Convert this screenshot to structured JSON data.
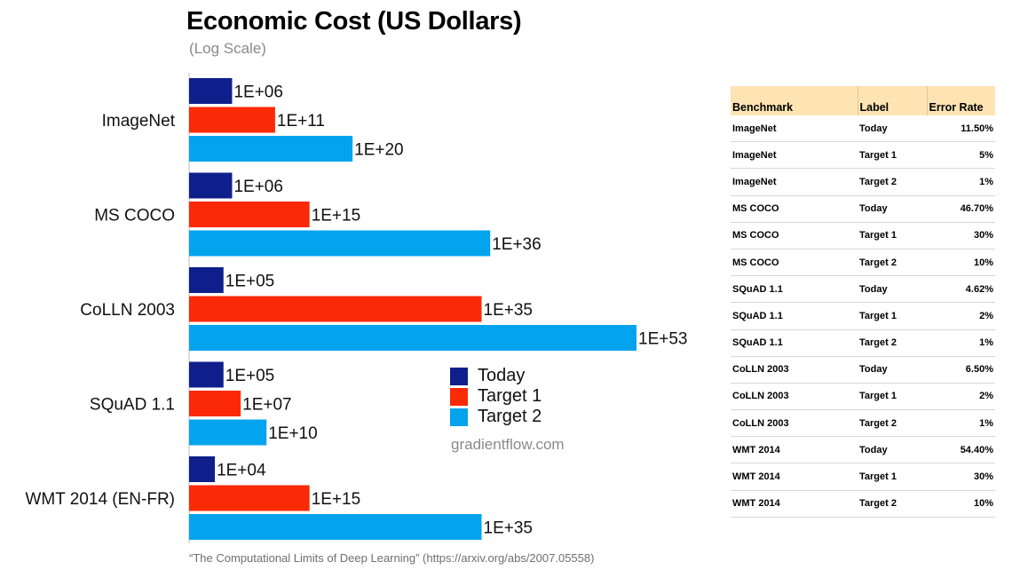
{
  "chart_data": {
    "type": "bar",
    "orientation": "horizontal",
    "title": "Economic Cost (US Dollars)",
    "subtitle": "(Log Scale)",
    "log_scale": true,
    "categories": [
      "ImageNet",
      "MS COCO",
      "CoLLN 2003",
      "SQuAD 1.1",
      "WMT 2014 (EN-FR)"
    ],
    "series": [
      {
        "name": "Today",
        "color": "#0e1f8c",
        "exponents": [
          6,
          6,
          5,
          5,
          4
        ],
        "labels": [
          "1E+06",
          "1E+06",
          "1E+05",
          "1E+05",
          "1E+04"
        ]
      },
      {
        "name": "Target 1",
        "color": "#fa2a07",
        "exponents": [
          11,
          15,
          35,
          7,
          15
        ],
        "labels": [
          "1E+11",
          "1E+15",
          "1E+35",
          "1E+07",
          "1E+15"
        ]
      },
      {
        "name": "Target 2",
        "color": "#04a3ee",
        "exponents": [
          20,
          36,
          53,
          10,
          35
        ],
        "labels": [
          "1E+20",
          "1E+36",
          "1E+53",
          "1E+10",
          "1E+35"
        ]
      }
    ],
    "xlim_exponent": [
      1,
      53
    ],
    "legend_position": "center-right",
    "grid": false
  },
  "watermark": "gradientflow.com",
  "source": "“The Computational Limits of Deep Learning” (https://arxiv.org/abs/2007.05558)",
  "table": {
    "headers": [
      "Benchmark",
      "Label",
      "Error Rate"
    ],
    "rows": [
      [
        "ImageNet",
        "Today",
        "11.50%"
      ],
      [
        "ImageNet",
        "Target 1",
        "5%"
      ],
      [
        "ImageNet",
        "Target 2",
        "1%"
      ],
      [
        "MS COCO",
        "Today",
        "46.70%"
      ],
      [
        "MS COCO",
        "Target 1",
        "30%"
      ],
      [
        "MS COCO",
        "Target 2",
        "10%"
      ],
      [
        "SQuAD 1.1",
        "Today",
        "4.62%"
      ],
      [
        "SQuAD 1.1",
        "Target 1",
        "2%"
      ],
      [
        "SQuAD 1.1",
        "Target 2",
        "1%"
      ],
      [
        "CoLLN 2003",
        "Today",
        "6.50%"
      ],
      [
        "CoLLN 2003",
        "Target 1",
        "2%"
      ],
      [
        "CoLLN 2003",
        "Target 2",
        "1%"
      ],
      [
        "WMT 2014",
        "Today",
        "54.40%"
      ],
      [
        "WMT 2014",
        "Target 1",
        "30%"
      ],
      [
        "WMT 2014",
        "Target 2",
        "10%"
      ]
    ]
  }
}
